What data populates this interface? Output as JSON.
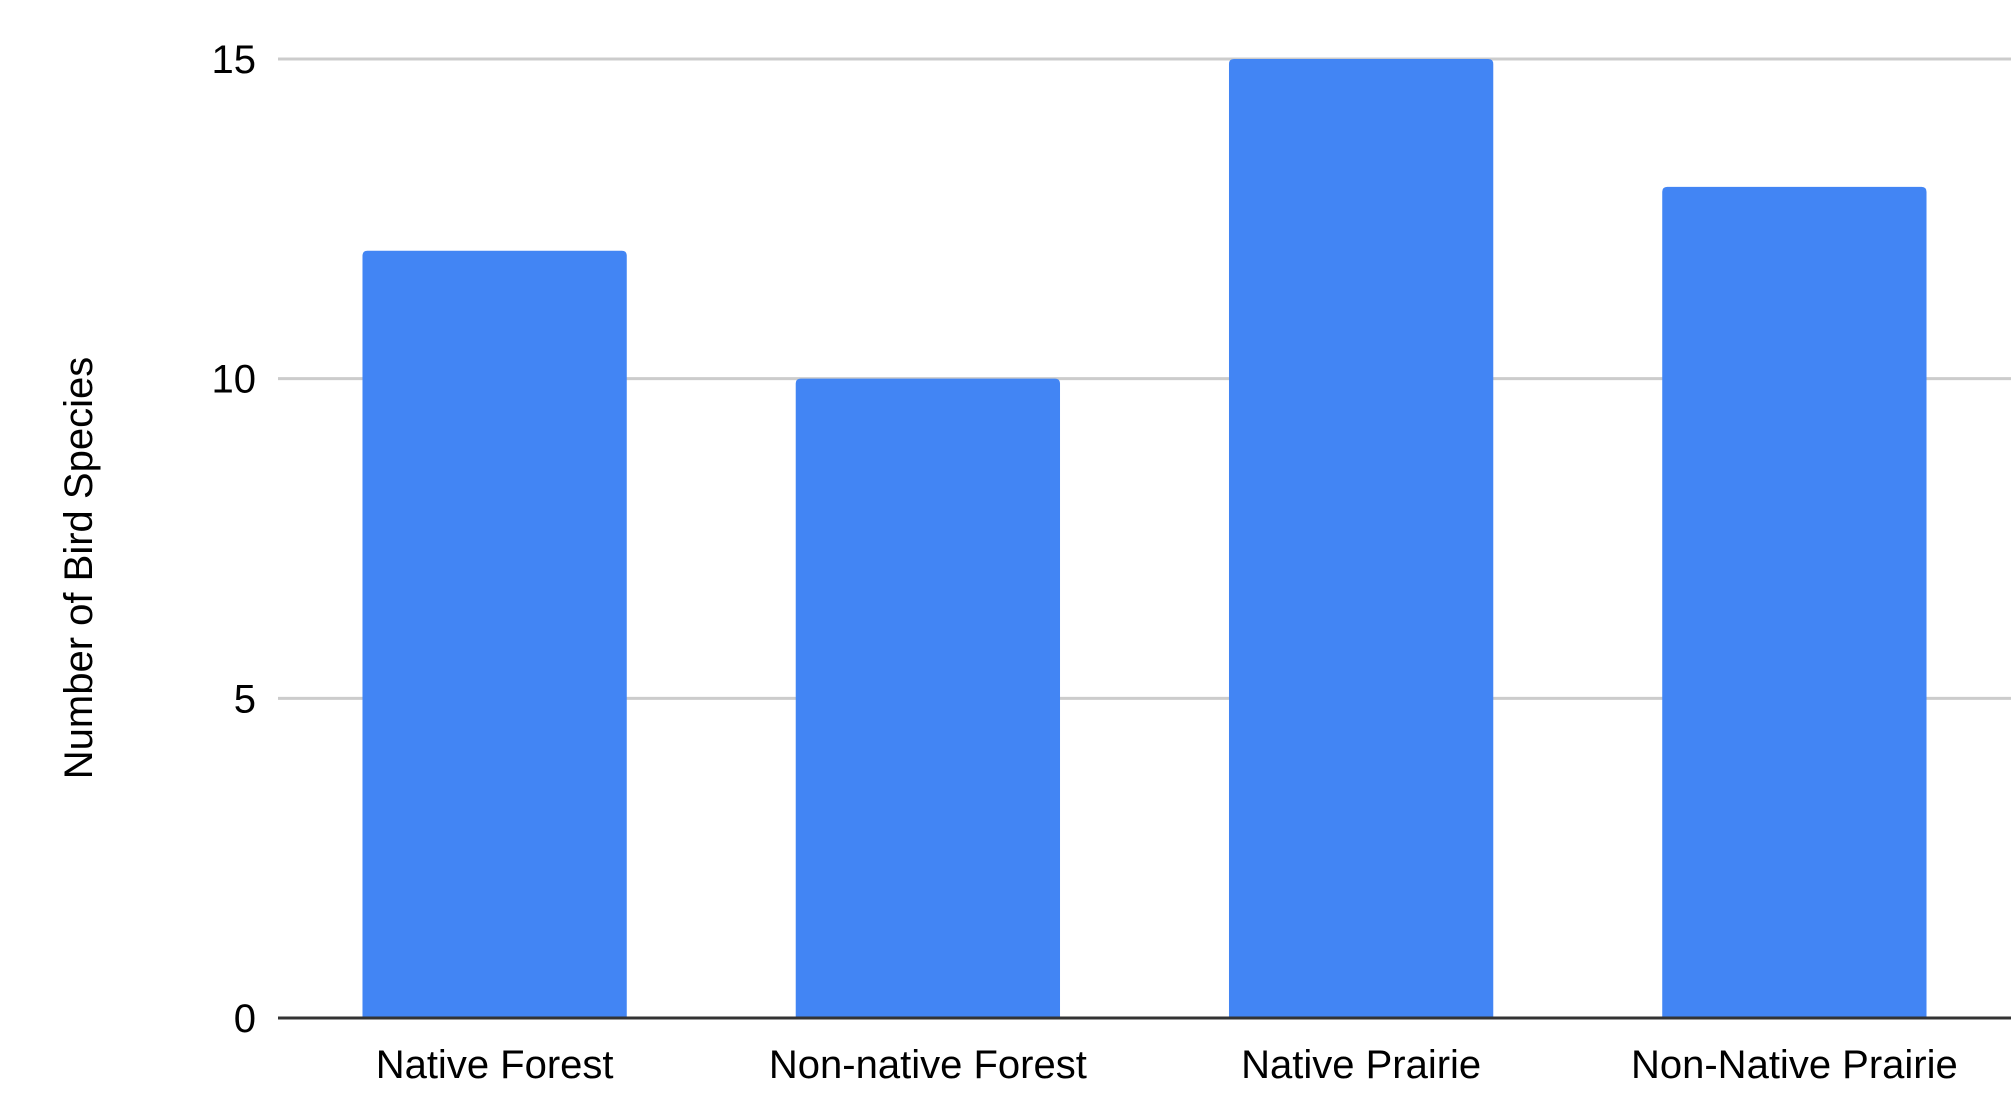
{
  "chart_data": {
    "type": "bar",
    "title": "",
    "xlabel": "",
    "ylabel": "Number of Bird Species",
    "categories": [
      "Native Forest",
      "Non-native Forest",
      "Native Prairie",
      "Non-Native Prairie"
    ],
    "series": [
      {
        "values": [
          12,
          10,
          15,
          13
        ]
      }
    ],
    "ylim": [
      0,
      15
    ],
    "yticks": [
      "0",
      "5",
      "10",
      "15"
    ],
    "grid": true,
    "legend": "none",
    "bar_color": "#4285F4",
    "grid_color": "#cccccc",
    "baseline_color": "#333333"
  }
}
